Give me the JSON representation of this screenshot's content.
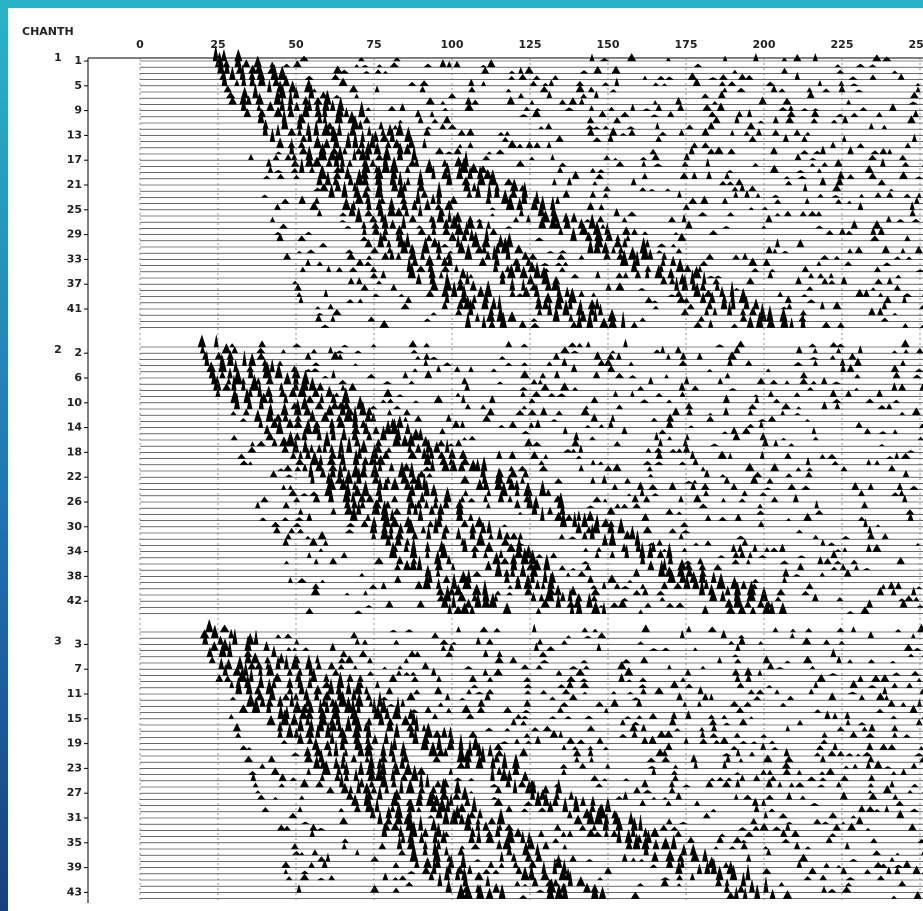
{
  "header": "CHANTH",
  "x_axis": {
    "ticks": [
      0,
      25,
      50,
      75,
      100,
      125,
      150,
      175,
      200,
      225,
      250
    ]
  },
  "groups": [
    {
      "label": "1",
      "channels": [
        1,
        5,
        9,
        13,
        17,
        21,
        25,
        29,
        33,
        37,
        41
      ]
    },
    {
      "label": "2",
      "channels": [
        2,
        6,
        10,
        14,
        18,
        22,
        26,
        30,
        34,
        38,
        42
      ]
    },
    {
      "label": "3",
      "channels": [
        3,
        7,
        11,
        15,
        19,
        23,
        27,
        31,
        35,
        39,
        43
      ]
    }
  ]
}
